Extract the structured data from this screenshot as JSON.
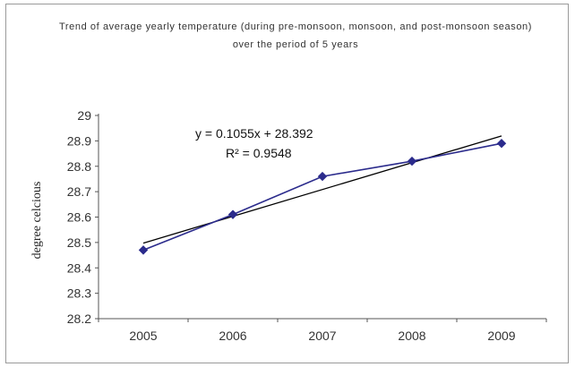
{
  "chart_data": {
    "type": "line",
    "title": "Trend of average yearly temperature (during pre-monsoon, monsoon, and post-monsoon season) over the period of 5 years",
    "xlabel": "",
    "ylabel": "degree celcious",
    "categories": [
      "2005",
      "2006",
      "2007",
      "2008",
      "2009"
    ],
    "series": [
      {
        "values": [
          28.47,
          28.61,
          28.76,
          28.82,
          28.89
        ],
        "color": "#2b2b8c",
        "marker": "diamond"
      }
    ],
    "trendline": {
      "type": "linear",
      "slope": 0.1055,
      "intercept": 28.392,
      "equation": "y = 0.1055x + 28.392",
      "r2_label": "R² = 0.9548",
      "color": "#000000"
    },
    "ylim": [
      28.2,
      29
    ],
    "yticks": [
      "28.2",
      "28.3",
      "28.4",
      "28.5",
      "28.6",
      "28.7",
      "28.8",
      "28.9",
      "29"
    ],
    "grid": false,
    "legend": "none"
  }
}
